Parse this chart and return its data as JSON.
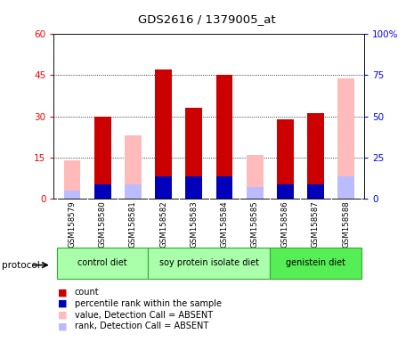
{
  "title": "GDS2616 / 1379005_at",
  "samples": [
    "GSM158579",
    "GSM158580",
    "GSM158581",
    "GSM158582",
    "GSM158583",
    "GSM158584",
    "GSM158585",
    "GSM158586",
    "GSM158587",
    "GSM158588"
  ],
  "count": [
    0,
    30,
    0,
    47,
    33,
    45,
    0,
    29,
    31,
    0
  ],
  "percentile_rank": [
    0,
    5,
    0,
    8,
    8,
    8,
    0,
    5,
    5,
    0
  ],
  "value_absent": [
    14,
    0,
    23,
    0,
    0,
    0,
    16,
    0,
    0,
    44
  ],
  "rank_absent": [
    3,
    0,
    5,
    0,
    0,
    0,
    4,
    0,
    0,
    8
  ],
  "ylim_left": [
    0,
    60
  ],
  "ylim_right": [
    0,
    100
  ],
  "yticks_left": [
    0,
    15,
    30,
    45,
    60
  ],
  "yticks_right": [
    0,
    25,
    50,
    75,
    100
  ],
  "ytick_labels_left": [
    "0",
    "15",
    "30",
    "45",
    "60"
  ],
  "ytick_labels_right": [
    "0",
    "25",
    "50",
    "75",
    "100%"
  ],
  "groups": [
    {
      "label": "control diet",
      "start": 0,
      "end": 3
    },
    {
      "label": "soy protein isolate diet",
      "start": 3,
      "end": 7
    },
    {
      "label": "genistein diet",
      "start": 7,
      "end": 10
    }
  ],
  "group_colors": [
    "#aaffaa",
    "#aaffaa",
    "#55ee55"
  ],
  "group_edge_color": "#33aa33",
  "bar_width": 0.55,
  "count_color": "#cc0000",
  "rank_color": "#0000bb",
  "absent_value_color": "#ffbbbb",
  "absent_rank_color": "#bbbbff",
  "plot_bg": "#ffffff",
  "label_bg": "#cccccc",
  "legend_items": [
    {
      "label": "count",
      "color": "#cc0000"
    },
    {
      "label": "percentile rank within the sample",
      "color": "#0000bb"
    },
    {
      "label": "value, Detection Call = ABSENT",
      "color": "#ffbbbb"
    },
    {
      "label": "rank, Detection Call = ABSENT",
      "color": "#bbbbff"
    }
  ]
}
